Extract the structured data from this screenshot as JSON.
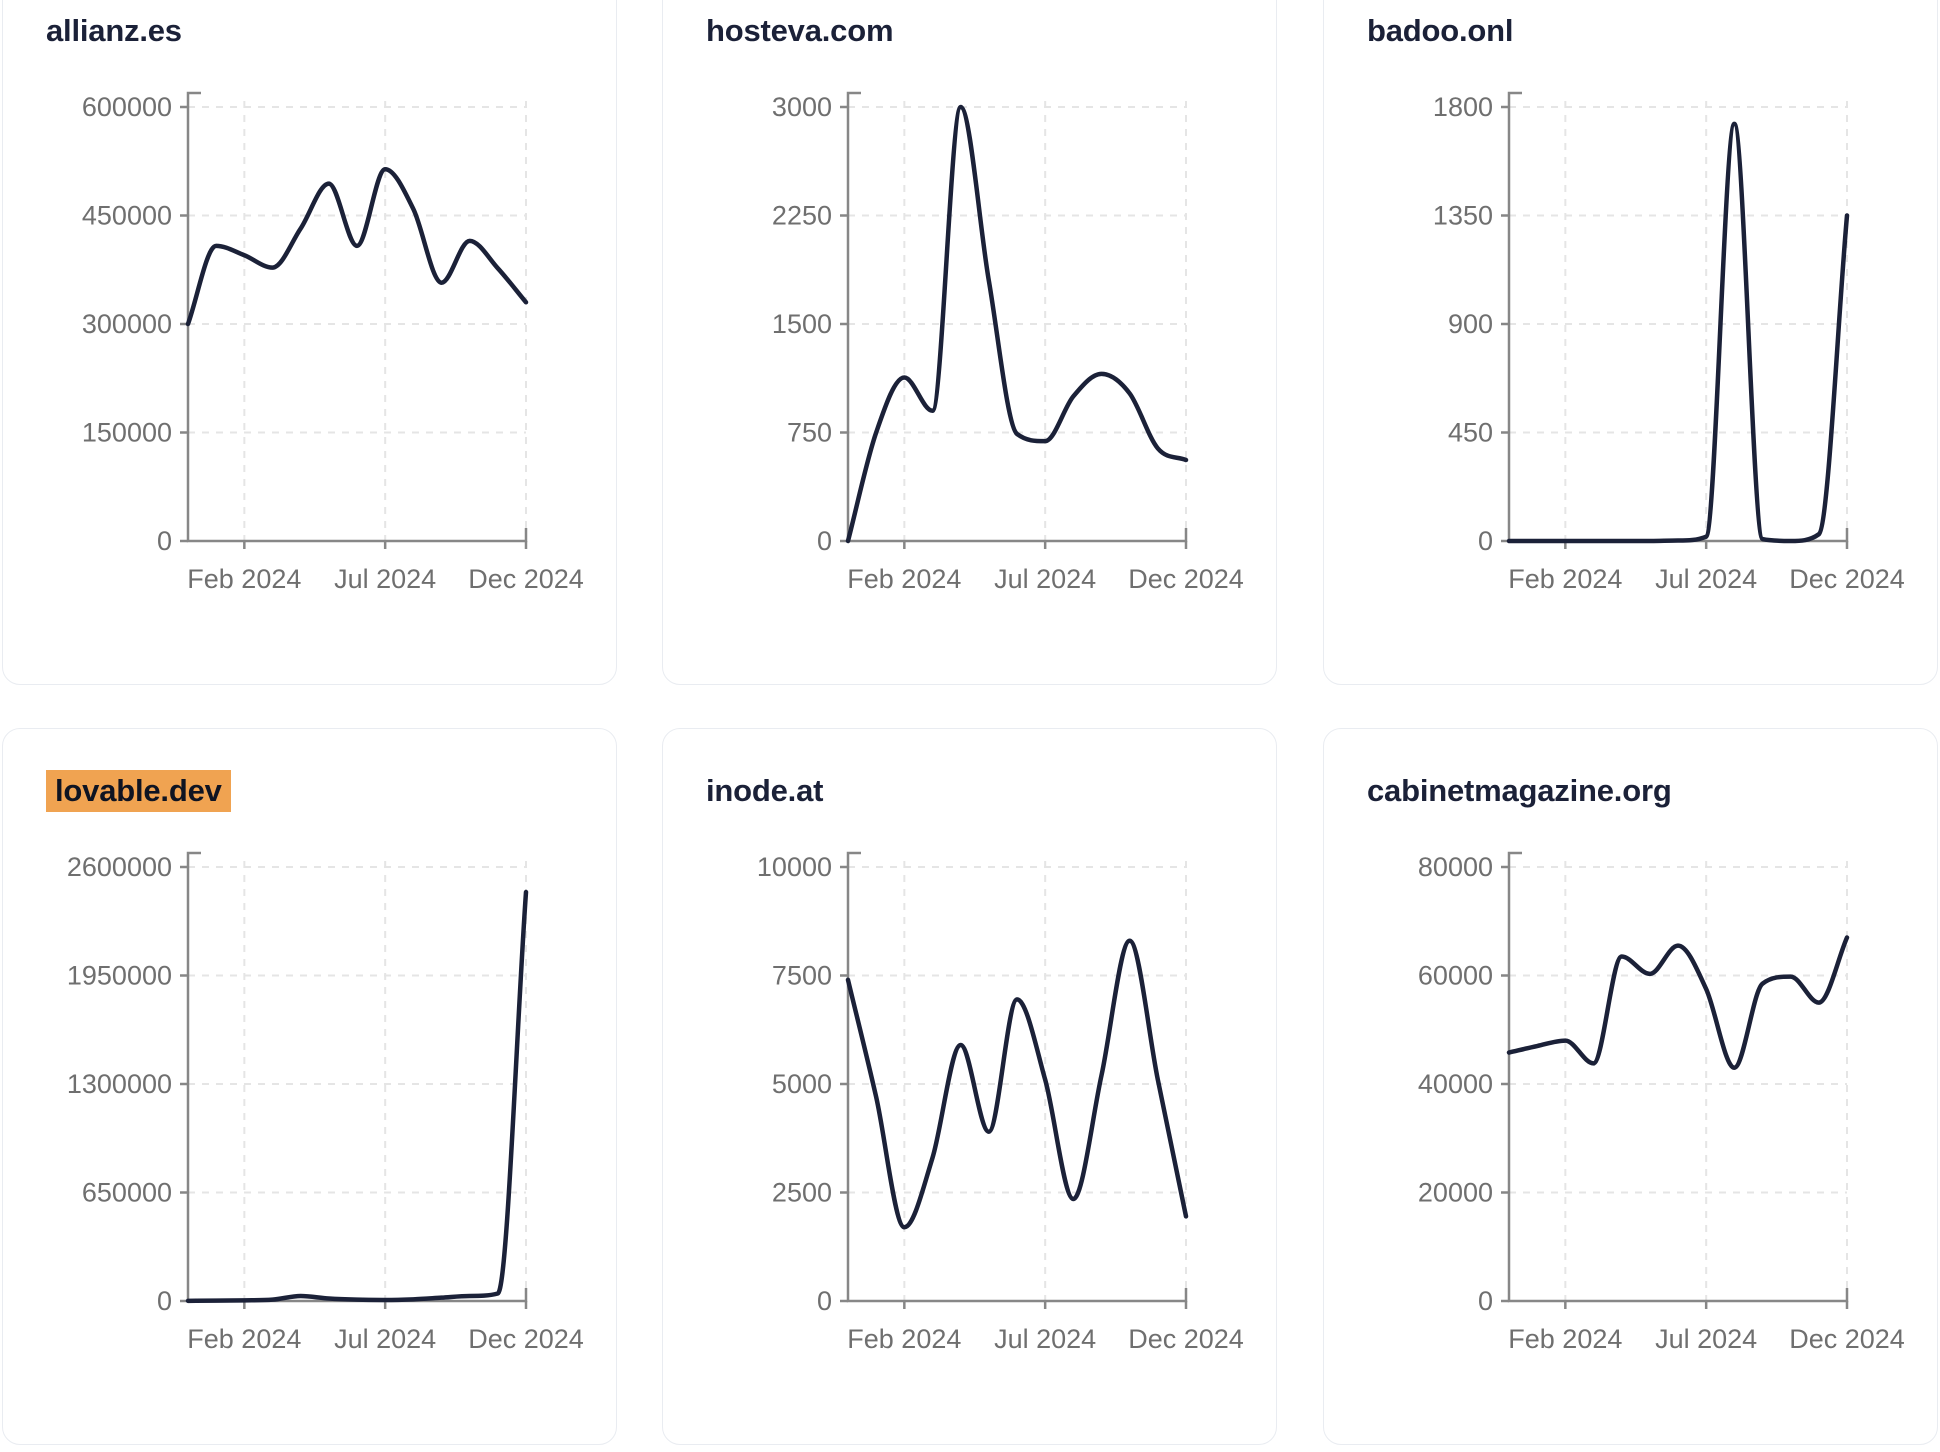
{
  "colors": {
    "line": "#1b2138",
    "title": "#1b2138",
    "highlight_bg": "#f0a351",
    "highlight_text": "#0f1422",
    "axis": "#878787",
    "tick_text": "#6f6f6f",
    "grid": "#e5e5e5",
    "card_border": "#e9ecf1",
    "card_bg": "#ffffff",
    "page_bg": "#ffffff"
  },
  "chart_data": [
    {
      "type": "line",
      "title": "allianz.es",
      "title_highlighted": false,
      "x": [
        "Dec 2023",
        "Jan 2024",
        "Feb 2024",
        "Mar 2024",
        "Apr 2024",
        "May 2024",
        "Jun 2024",
        "Jul 2024",
        "Aug 2024",
        "Sep 2024",
        "Oct 2024",
        "Nov 2024",
        "Dec 2024"
      ],
      "values": [
        300000,
        408000,
        395000,
        378000,
        432000,
        494000,
        408000,
        514000,
        459000,
        357000,
        415000,
        377000,
        330000
      ],
      "ylim": [
        0,
        600000
      ],
      "y_ticks": [
        0,
        150000,
        300000,
        450000,
        600000
      ],
      "x_tick_labels": [
        "Feb 2024",
        "Jul 2024",
        "Dec 2024"
      ],
      "x_tick_indices": [
        2,
        7,
        12
      ],
      "grid": "dashed",
      "legend": "none"
    },
    {
      "type": "line",
      "title": "hosteva.com",
      "title_highlighted": false,
      "x": [
        "Dec 2023",
        "Jan 2024",
        "Feb 2024",
        "Mar 2024",
        "Apr 2024",
        "May 2024",
        "Jun 2024",
        "Jul 2024",
        "Aug 2024",
        "Sep 2024",
        "Oct 2024",
        "Nov 2024",
        "Dec 2024"
      ],
      "values": [
        0,
        750,
        1130,
        900,
        3000,
        1800,
        740,
        690,
        1000,
        1155,
        1020,
        640,
        560
      ],
      "ylim": [
        0,
        3000
      ],
      "y_ticks": [
        0,
        750,
        1500,
        2250,
        3000
      ],
      "x_tick_labels": [
        "Feb 2024",
        "Jul 2024",
        "Dec 2024"
      ],
      "x_tick_indices": [
        2,
        7,
        12
      ],
      "grid": "dashed",
      "legend": "none"
    },
    {
      "type": "line",
      "title": "badoo.onl",
      "title_highlighted": false,
      "x": [
        "Dec 2023",
        "Jan 2024",
        "Feb 2024",
        "Mar 2024",
        "Apr 2024",
        "May 2024",
        "Jun 2024",
        "Jul 2024",
        "Aug 2024",
        "Sep 2024",
        "Oct 2024",
        "Nov 2024",
        "Dec 2024"
      ],
      "values": [
        0,
        0,
        0,
        0,
        0,
        0,
        2,
        18,
        1730,
        8,
        0,
        28,
        1350
      ],
      "ylim": [
        0,
        1800
      ],
      "y_ticks": [
        0,
        450,
        900,
        1350,
        1800
      ],
      "x_tick_labels": [
        "Feb 2024",
        "Jul 2024",
        "Dec 2024"
      ],
      "x_tick_indices": [
        2,
        7,
        12
      ],
      "grid": "dashed",
      "legend": "none"
    },
    {
      "type": "line",
      "title": "lovable.dev",
      "title_highlighted": true,
      "x": [
        "Dec 2023",
        "Jan 2024",
        "Feb 2024",
        "Mar 2024",
        "Apr 2024",
        "May 2024",
        "Jun 2024",
        "Jul 2024",
        "Aug 2024",
        "Sep 2024",
        "Oct 2024",
        "Nov 2024",
        "Dec 2024"
      ],
      "values": [
        1000,
        2000,
        4000,
        8000,
        30000,
        15000,
        8000,
        6000,
        10000,
        20000,
        30000,
        45000,
        2450000
      ],
      "ylim": [
        0,
        2600000
      ],
      "y_ticks": [
        0,
        650000,
        1300000,
        1950000,
        2600000
      ],
      "x_tick_labels": [
        "Feb 2024",
        "Jul 2024",
        "Dec 2024"
      ],
      "x_tick_indices": [
        2,
        7,
        12
      ],
      "grid": "dashed",
      "legend": "none"
    },
    {
      "type": "line",
      "title": "inode.at",
      "title_highlighted": false,
      "x": [
        "Dec 2023",
        "Jan 2024",
        "Feb 2024",
        "Mar 2024",
        "Apr 2024",
        "May 2024",
        "Jun 2024",
        "Jul 2024",
        "Aug 2024",
        "Sep 2024",
        "Oct 2024",
        "Nov 2024",
        "Dec 2024"
      ],
      "values": [
        7400,
        4700,
        1700,
        3300,
        5900,
        3900,
        6950,
        5100,
        2350,
        5200,
        8300,
        5100,
        1950
      ],
      "ylim": [
        0,
        10000
      ],
      "y_ticks": [
        0,
        2500,
        5000,
        7500,
        10000
      ],
      "x_tick_labels": [
        "Feb 2024",
        "Jul 2024",
        "Dec 2024"
      ],
      "x_tick_indices": [
        2,
        7,
        12
      ],
      "grid": "dashed",
      "legend": "none"
    },
    {
      "type": "line",
      "title": "cabinetmagazine.org",
      "title_highlighted": false,
      "x": [
        "Dec 2023",
        "Jan 2024",
        "Feb 2024",
        "Mar 2024",
        "Apr 2024",
        "May 2024",
        "Jun 2024",
        "Jul 2024",
        "Aug 2024",
        "Sep 2024",
        "Oct 2024",
        "Nov 2024",
        "Dec 2024"
      ],
      "values": [
        45800,
        47000,
        48000,
        43800,
        63500,
        60300,
        65500,
        57500,
        43000,
        58500,
        59800,
        55000,
        67000
      ],
      "ylim": [
        0,
        80000
      ],
      "y_ticks": [
        0,
        20000,
        40000,
        60000,
        80000
      ],
      "x_tick_labels": [
        "Feb 2024",
        "Jul 2024",
        "Dec 2024"
      ],
      "x_tick_indices": [
        2,
        7,
        12
      ],
      "grid": "dashed",
      "legend": "none"
    }
  ]
}
